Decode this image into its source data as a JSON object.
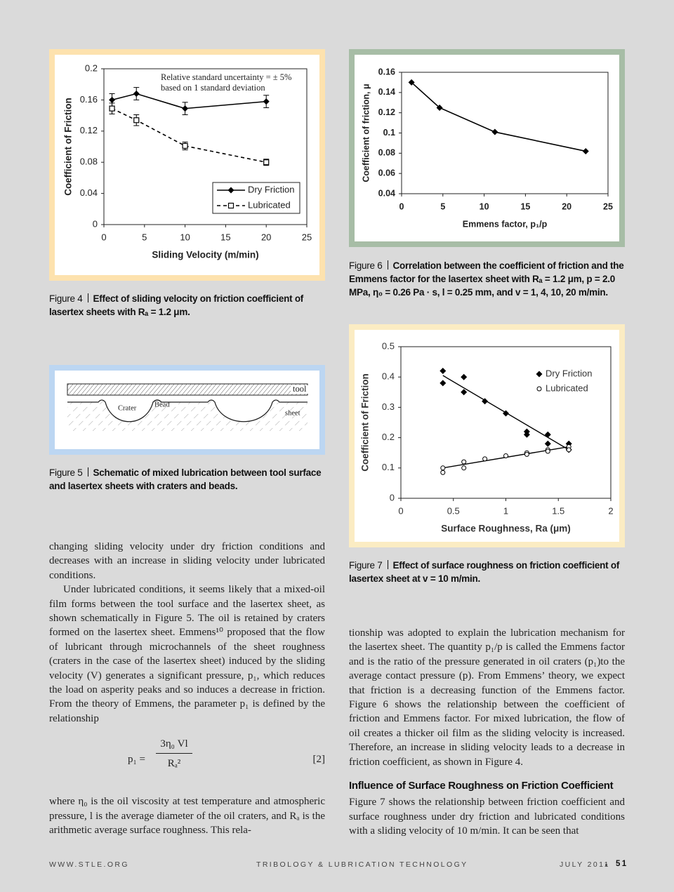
{
  "figure4": {
    "chart": {
      "type": "line",
      "ylabel": "Coefficient of Friction",
      "xlabel": "Sliding Velocity (m/min)",
      "annotation": [
        "Relative standard uncertainty = ± 5%",
        "based on 1 standard deviation"
      ],
      "xlim": [
        0,
        25
      ],
      "xticks": [
        0,
        5,
        10,
        15,
        20,
        25
      ],
      "ylim": [
        0,
        0.2
      ],
      "yticks": [
        0,
        0.04,
        0.08,
        0.12,
        0.16,
        0.2
      ],
      "legend": "lower right",
      "series": [
        {
          "name": "Dry Friction",
          "color": "#000000",
          "line_style": "solid",
          "marker": "diamond",
          "x": [
            1,
            4,
            10,
            20
          ],
          "values": [
            0.16,
            0.168,
            0.149,
            0.158
          ],
          "errors": [
            0.008,
            0.008,
            0.008,
            0.008
          ]
        },
        {
          "name": "Lubricated",
          "color": "#000000",
          "line_style": "dashed",
          "marker": "square-open",
          "x": [
            1,
            4,
            10,
            20
          ],
          "values": [
            0.149,
            0.134,
            0.101,
            0.08
          ],
          "errors": [
            0.007,
            0.007,
            0.005,
            0.004
          ]
        }
      ]
    },
    "caption": {
      "label": "Figure 4",
      "text": "Effect of sliding velocity on friction coefficient of lasertex sheets with Rₐ = 1.2 μm."
    }
  },
  "figure5": {
    "labels": {
      "tool": "tool",
      "crater": "Crater",
      "bead": "Bead",
      "sheet": "sheet"
    },
    "caption": {
      "label": "Figure 5",
      "text": "Schematic of mixed lubrication between tool surface and lasertex sheets with craters and beads."
    }
  },
  "figure6": {
    "chart": {
      "type": "line",
      "ylabel": "Coefficient of friction, μ",
      "xlabel": "Emmens factor, p₁/p",
      "xlim": [
        0,
        25
      ],
      "xticks": [
        0,
        5,
        10,
        15,
        20,
        25
      ],
      "ylim": [
        0.04,
        0.16
      ],
      "yticks": [
        0.04,
        0.06,
        0.08,
        0.1,
        0.12,
        0.14,
        0.16
      ],
      "series": [
        {
          "color": "#000000",
          "line_style": "solid",
          "marker": "diamond",
          "x": [
            1.2,
            4.6,
            11.3,
            22.3
          ],
          "values": [
            0.15,
            0.125,
            0.101,
            0.082
          ]
        }
      ]
    },
    "caption": {
      "label": "Figure 6",
      "text": "Correlation between the coefficient of friction and the Emmens factor for the lasertex sheet with Rₐ = 1.2 μm, p = 2.0 MPa, η₀ = 0.26 Pa · s, l = 0.25 mm, and v = 1, 4, 10, 20 m/min."
    }
  },
  "figure7": {
    "chart": {
      "type": "scatter",
      "ylabel": "Coefficient of Friction",
      "xlabel": "Surface Roughness, Ra (μm)",
      "xlim": [
        0,
        2
      ],
      "xticks": [
        0,
        0.5,
        1,
        1.5,
        2
      ],
      "ylim": [
        0,
        0.5
      ],
      "yticks": [
        0,
        0.1,
        0.2,
        0.3,
        0.4,
        0.5
      ],
      "legend": "upper right",
      "series": [
        {
          "name": "Dry Friction",
          "color": "#000000",
          "marker": "diamond",
          "x": [
            0.4,
            0.4,
            0.6,
            0.6,
            0.8,
            1,
            1.2,
            1.2,
            1.4,
            1.4,
            1.6,
            1.6
          ],
          "values": [
            0.42,
            0.38,
            0.4,
            0.35,
            0.32,
            0.28,
            0.22,
            0.21,
            0.21,
            0.18,
            0.18,
            0.16
          ],
          "trend": {
            "x": [
              0.4,
              1.6
            ],
            "values": [
              0.405,
              0.16
            ]
          }
        },
        {
          "name": "Lubricated",
          "color": "#000000",
          "marker": "circle-open",
          "x": [
            0.4,
            0.4,
            0.6,
            0.6,
            0.8,
            1,
            1.2,
            1.2,
            1.4,
            1.4,
            1.6,
            1.6
          ],
          "values": [
            0.1,
            0.085,
            0.12,
            0.1,
            0.13,
            0.14,
            0.15,
            0.145,
            0.16,
            0.155,
            0.17,
            0.16
          ],
          "trend": {
            "x": [
              0.4,
              1.6
            ],
            "values": [
              0.1,
              0.17
            ]
          }
        }
      ]
    },
    "caption": {
      "label": "Figure 7",
      "text": "Effect of surface roughness on friction coefficient of lasertex sheet at v = 10 m/min."
    }
  },
  "body": {
    "left": [
      "changing sliding velocity under dry friction conditions and decreases with an increase in sliding velocity under lubricated conditions.",
      "Under lubricated conditions, it seems likely that a mixed-oil film forms between the tool surface and the lasertex sheet, as shown schematically in Figure 5. The oil is retained by craters formed on the lasertex sheet. Emmens¹⁰ proposed that the flow of lubricant through microchannels of the sheet roughness (craters in the case of the lasertex sheet) induced by the sliding velocity (V) generates a significant pressure, p₁, which reduces the load on asperity peaks and so induces a decrease in friction. From the theory of Emmens, the parameter p₁ is defined by the relationship"
    ],
    "equation": {
      "lhs": "p₁ =",
      "numerator": "3η₀ Vl",
      "denominator": "Rₐ²",
      "number": "[2]"
    },
    "after_equation": "where η₀ is the oil viscosity at test temperature and atmospheric pressure, l is the average diameter of the oil craters, and Rₐ is the arithmetic average surface roughness. This rela-",
    "right": [
      "tionship was adopted to explain the lubrication mechanism for the lasertex sheet. The quantity p₁/p is called the Emmens factor and is the ratio of the pressure generated in oil craters (p₁)to the average contact pressure (p). From Emmens’ theory, we expect that friction is a decreasing function of the Emmens factor. Figure 6 shows the relationship between the coefficient of friction and Emmens factor. For mixed lubrication, the flow of oil creates a thicker oil film as the sliding velocity is increased. Therefore, an increase in sliding velocity leads to a decrease in friction coefficient, as shown in Figure 4."
    ],
    "heading": "Influence of Surface Roughness on Friction Coefficient",
    "after_heading": "Figure 7 shows the relationship between friction coefficient and surface roughness under dry friction and lubricated conditions with a sliding velocity of 10 m/min. It can be seen that"
  },
  "footer": {
    "website": "WWW.STLE.ORG",
    "publication": "TRIBOLOGY & LUBRICATION TECHNOLOGY",
    "issue": "JULY 2011",
    "page": "51"
  }
}
